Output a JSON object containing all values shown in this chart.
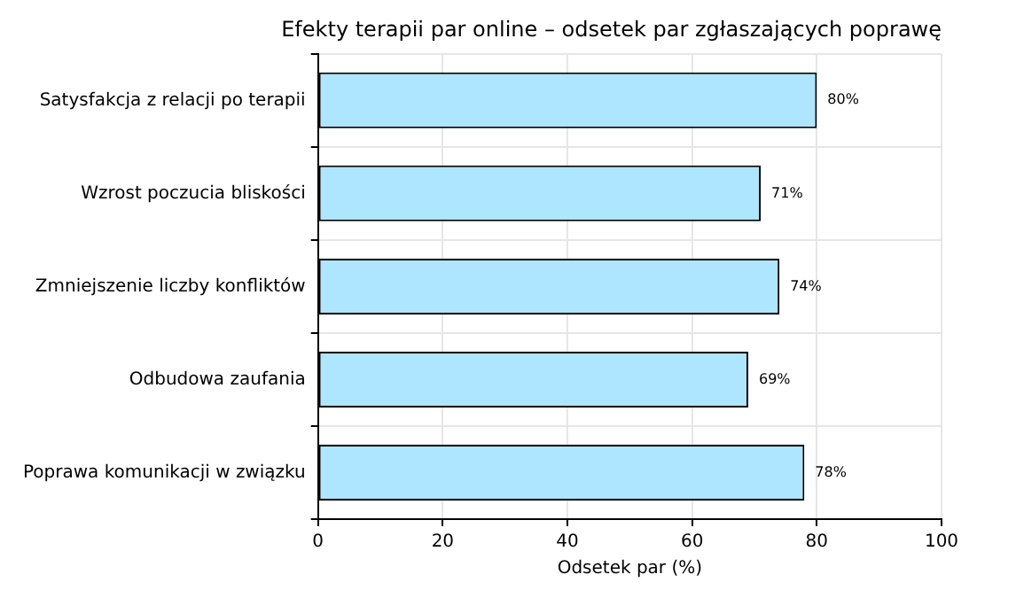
{
  "chart_data": {
    "type": "bar",
    "orientation": "horizontal",
    "title": "Efekty terapii par online – odsetek par zgłaszających poprawę",
    "xlabel": "Odsetek par (%)",
    "categories": [
      "Satysfakcja z relacji po terapii",
      "Wzrost poczucia bliskości",
      "Zmniejszenie liczby konfliktów",
      "Odbudowa zaufania",
      "Poprawa komunikacji w związku"
    ],
    "values": [
      80,
      71,
      74,
      69,
      78
    ],
    "value_labels": [
      "80%",
      "71%",
      "74%",
      "69%",
      "78%"
    ],
    "color": "#aee6ff",
    "xlim": [
      0,
      100
    ],
    "xticks": [
      0,
      20,
      40,
      60,
      80,
      100
    ],
    "grid": true,
    "legend": false
  }
}
